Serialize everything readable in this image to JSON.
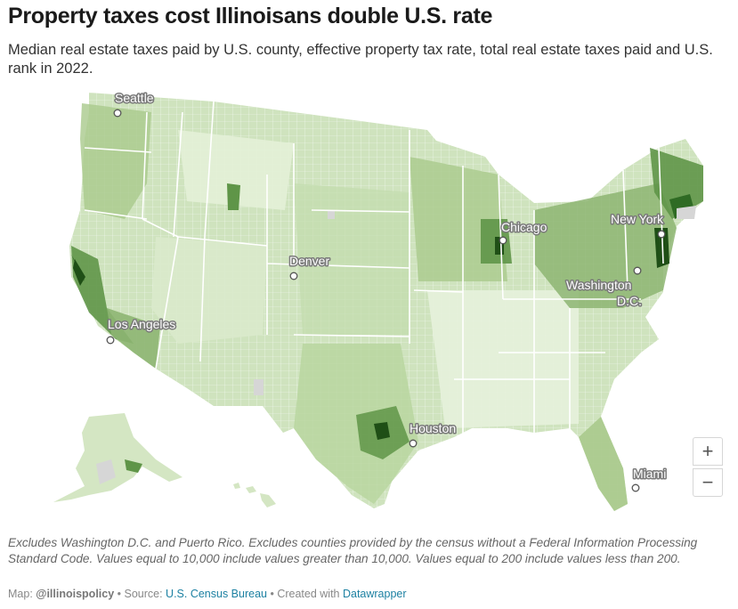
{
  "header": {
    "title": "Property taxes cost Illinoisans double U.S. rate",
    "subtitle": "Median real estate taxes paid by U.S. county, effective property tax rate, total real estate taxes paid and U.S. rank in 2022."
  },
  "map": {
    "colors": {
      "lightest": "#eef5e6",
      "light": "#d4e6c3",
      "mid": "#a9c98c",
      "dark": "#5f9548",
      "darkest": "#1f4f16",
      "no_data": "#d6d6d6",
      "borders": "#ffffff"
    },
    "cities": [
      {
        "name": "Seattle"
      },
      {
        "name": "Chicago"
      },
      {
        "name": "New York"
      },
      {
        "name": "Denver"
      },
      {
        "name": "Washington D.C."
      },
      {
        "name": "Los Angeles"
      },
      {
        "name": "Houston"
      },
      {
        "name": "Miami"
      }
    ],
    "zoom_in": "+",
    "zoom_out": "−"
  },
  "footer": {
    "notes": "Excludes Washington D.C. and Puerto Rico. Excludes counties provided by the census without a Federal Information Processing Standard Code. Values equal to 10,000 include values greater than 10,000. Values equal to 200 include values less than 200.",
    "map_prefix": "Map: ",
    "map_credit": "@illinoispolicy",
    "source_prefix": " • Source: ",
    "source": "U.S. Census Bureau",
    "created_prefix": " • Created with ",
    "tool": "Datawrapper"
  }
}
